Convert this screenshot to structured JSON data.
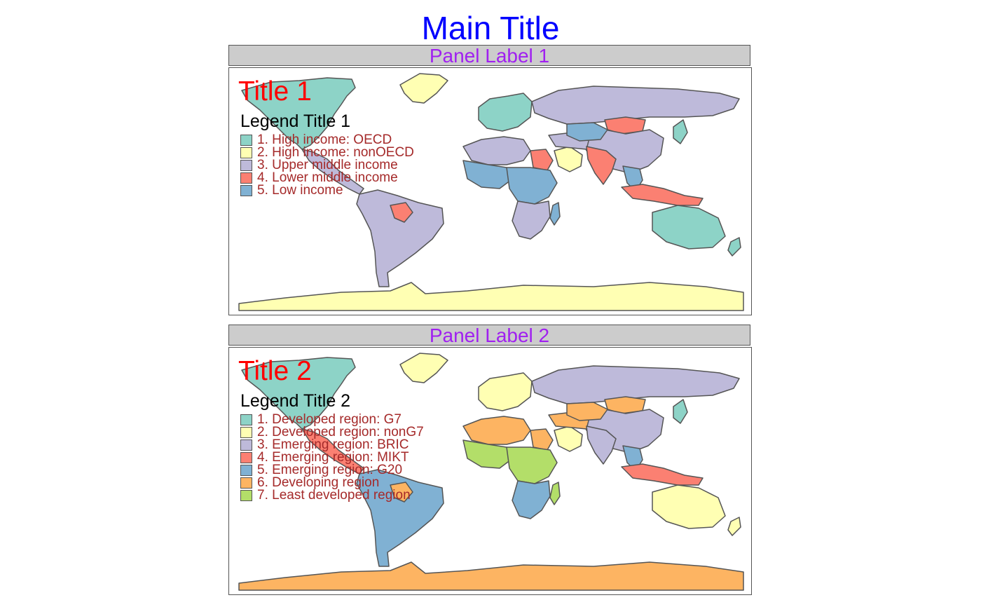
{
  "main_title": "Main Title",
  "panels": [
    {
      "label": "Panel Label 1",
      "title": "Title 1",
      "legend_title": "Legend Title 1",
      "legend": [
        {
          "label": "1. High income: OECD",
          "color": "#8dd3c7"
        },
        {
          "label": "2. High income: nonOECD",
          "color": "#ffffb3"
        },
        {
          "label": "3. Upper middle income",
          "color": "#bebada"
        },
        {
          "label": "4. Lower middle income",
          "color": "#fb8072"
        },
        {
          "label": "5. Low income",
          "color": "#80b1d3"
        }
      ],
      "region_colors": {
        "north_america": "#8dd3c7",
        "greenland": "#ffffb3",
        "mexico": "#bebada",
        "south_america": "#bebada",
        "bolivia": "#fb8072",
        "europe": "#8dd3c7",
        "russia": "#bebada",
        "mongolia": "#fb8072",
        "china": "#bebada",
        "north_africa": "#bebada",
        "egypt": "#fb8072",
        "west_africa": "#80b1d3",
        "central_africa": "#80b1d3",
        "southern_africa": "#bebada",
        "arabia": "#ffffb3",
        "iran": "#bebada",
        "central_asia": "#80b1d3",
        "india": "#fb8072",
        "southeast_asia": "#80b1d3",
        "indonesia": "#fb8072",
        "japan": "#8dd3c7",
        "australia": "#8dd3c7",
        "new_zealand": "#8dd3c7",
        "antarctica": "#ffffb3",
        "madagascar": "#80b1d3"
      }
    },
    {
      "label": "Panel Label 2",
      "title": "Title 2",
      "legend_title": "Legend Title 2",
      "legend": [
        {
          "label": "1. Developed region: G7",
          "color": "#8dd3c7"
        },
        {
          "label": "2. Developed region: nonG7",
          "color": "#ffffb3"
        },
        {
          "label": "3. Emerging region: BRIC",
          "color": "#bebada"
        },
        {
          "label": "4. Emerging region: MIKT",
          "color": "#fb8072"
        },
        {
          "label": "5. Emerging region: G20",
          "color": "#80b1d3"
        },
        {
          "label": "6. Developing region",
          "color": "#fdb462"
        },
        {
          "label": "7. Least developed region",
          "color": "#b3de69"
        }
      ],
      "region_colors": {
        "north_america": "#8dd3c7",
        "greenland": "#ffffb3",
        "mexico": "#fb8072",
        "south_america": "#80b1d3",
        "bolivia": "#fdb462",
        "europe": "#ffffb3",
        "russia": "#bebada",
        "mongolia": "#fdb462",
        "china": "#bebada",
        "north_africa": "#fdb462",
        "egypt": "#fdb462",
        "west_africa": "#b3de69",
        "central_africa": "#b3de69",
        "southern_africa": "#80b1d3",
        "arabia": "#ffffb3",
        "iran": "#fdb462",
        "central_asia": "#fdb462",
        "india": "#bebada",
        "southeast_asia": "#80b1d3",
        "indonesia": "#fb8072",
        "japan": "#8dd3c7",
        "australia": "#ffffb3",
        "new_zealand": "#ffffb3",
        "antarctica": "#fdb462",
        "madagascar": "#b3de69"
      }
    }
  ]
}
